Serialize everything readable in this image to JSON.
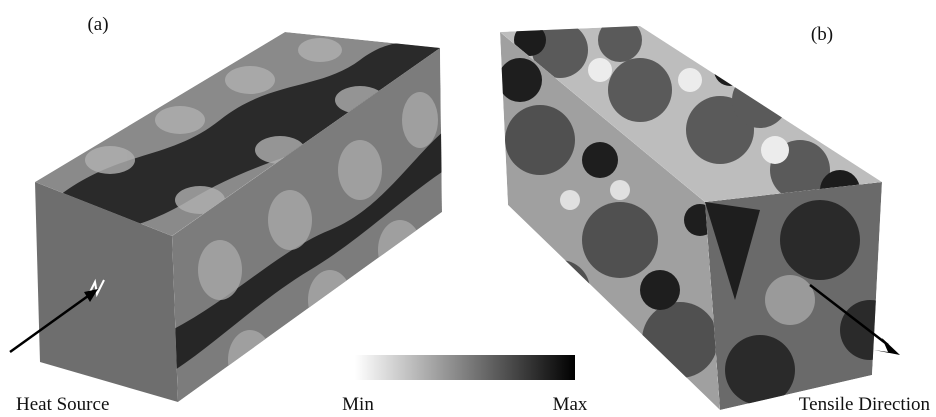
{
  "panels": [
    {
      "label": "(a)"
    },
    {
      "label": "(b)"
    }
  ],
  "annotations": {
    "heat_source": "Heat Source",
    "tensile_direction": "Tensile Direction"
  },
  "colorbar": {
    "min_label": "Min",
    "max_label": "Max"
  }
}
